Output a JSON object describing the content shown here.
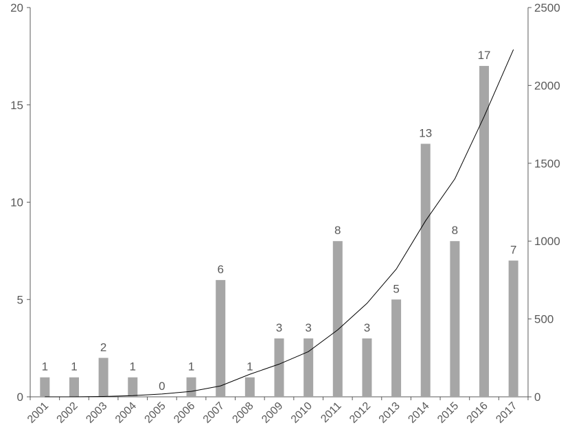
{
  "chart_data": {
    "type": "bar",
    "title": "",
    "xlabel": "",
    "ylabel": "",
    "categories": [
      "2001",
      "2002",
      "2003",
      "2004",
      "2005",
      "2006",
      "2007",
      "2008",
      "2009",
      "2010",
      "2011",
      "2012",
      "2013",
      "2014",
      "2015",
      "2016",
      "2017"
    ],
    "series": [
      {
        "type": "bar",
        "axis": "left",
        "color": "#a6a6a6",
        "values": [
          1,
          1,
          2,
          1,
          0,
          1,
          6,
          1,
          3,
          3,
          8,
          3,
          5,
          13,
          8,
          17,
          7
        ]
      },
      {
        "type": "line",
        "axis": "right",
        "color": "#000000",
        "values": [
          0,
          0,
          2,
          8,
          18,
          35,
          70,
          145,
          210,
          290,
          430,
          600,
          820,
          1130,
          1400,
          1800,
          2230
        ]
      }
    ],
    "ylim": [
      0,
      20
    ],
    "yticks": [
      0,
      5,
      10,
      15,
      20
    ],
    "y2lim": [
      0,
      2500
    ],
    "y2ticks": [
      0,
      500,
      1000,
      1500,
      2000,
      2500
    ],
    "data_labels": true,
    "grid": false,
    "legend": "none"
  }
}
